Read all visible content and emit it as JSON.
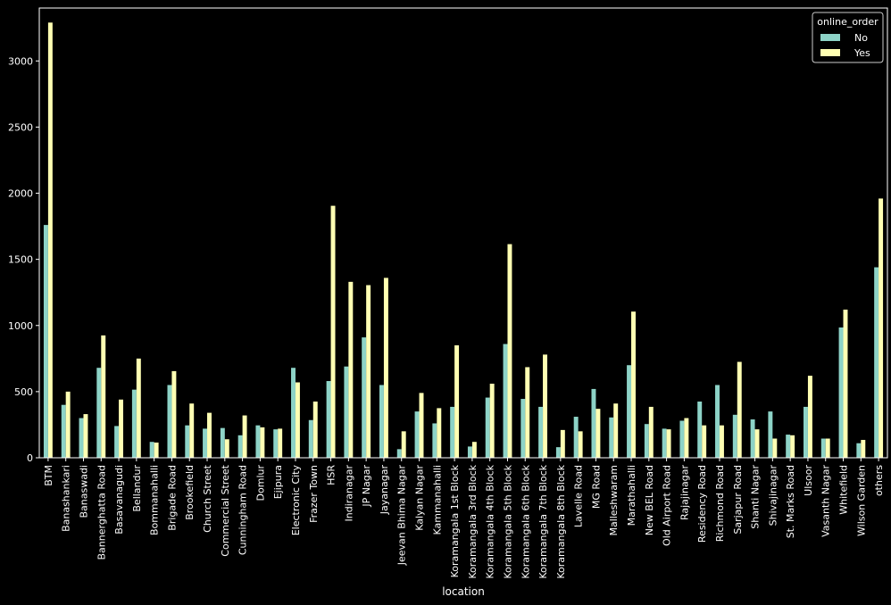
{
  "chart_data": {
    "type": "bar",
    "xlabel": "location",
    "ylabel": "",
    "ylim": [
      0,
      3400
    ],
    "yticks": [
      0,
      500,
      1000,
      1500,
      2000,
      2500,
      3000
    ],
    "grid": false,
    "legend": {
      "title": "online_order",
      "placement": "top-right"
    },
    "categories": [
      "BTM",
      "Banashankari",
      "Banaswadi",
      "Bannerghatta Road",
      "Basavanagudi",
      "Bellandur",
      "Bommanahalli",
      "Brigade Road",
      "Brookefield",
      "Church Street",
      "Commercial Street",
      "Cunningham Road",
      "Domlur",
      "Ejipura",
      "Electronic City",
      "Frazer Town",
      "HSR",
      "Indiranagar",
      "JP Nagar",
      "Jayanagar",
      "Jeevan Bhima Nagar",
      "Kalyan Nagar",
      "Kammanahalli",
      "Koramangala 1st Block",
      "Koramangala 3rd Block",
      "Koramangala 4th Block",
      "Koramangala 5th Block",
      "Koramangala 6th Block",
      "Koramangala 7th Block",
      "Koramangala 8th Block",
      "Lavelle Road",
      "MG Road",
      "Malleshwaram",
      "Marathahalli",
      "New BEL Road",
      "Old Airport Road",
      "Rajajinagar",
      "Residency Road",
      "Richmond Road",
      "Sarjapur Road",
      "Shanti Nagar",
      "Shivajinagar",
      "St. Marks Road",
      "Ulsoor",
      "Vasanth Nagar",
      "Whitefield",
      "Wilson Garden",
      "others"
    ],
    "series": [
      {
        "name": "No",
        "color": "#8dd3c7",
        "values": [
          1760,
          400,
          300,
          680,
          240,
          515,
          120,
          550,
          245,
          220,
          225,
          170,
          245,
          215,
          680,
          285,
          580,
          690,
          910,
          550,
          65,
          350,
          260,
          385,
          85,
          455,
          860,
          445,
          385,
          80,
          310,
          520,
          305,
          700,
          255,
          220,
          280,
          425,
          550,
          325,
          290,
          350,
          175,
          385,
          145,
          985,
          110,
          1440
        ]
      },
      {
        "name": "Yes",
        "color": "#ffffb3",
        "values": [
          3290,
          500,
          330,
          925,
          440,
          750,
          115,
          655,
          410,
          340,
          140,
          320,
          230,
          220,
          570,
          425,
          1905,
          1330,
          1305,
          1360,
          200,
          490,
          375,
          850,
          120,
          560,
          1615,
          685,
          780,
          210,
          200,
          370,
          410,
          1105,
          385,
          215,
          300,
          245,
          245,
          725,
          215,
          145,
          170,
          620,
          145,
          1120,
          135,
          1960
        ]
      }
    ]
  }
}
